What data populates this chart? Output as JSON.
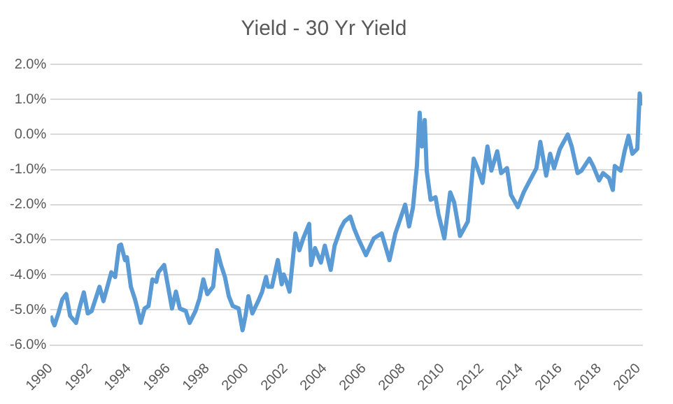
{
  "chart_data": {
    "type": "line",
    "title": "Yield - 30 Yr Yield",
    "x": [
      1990.0,
      1990.2,
      1990.4,
      1990.6,
      1990.8,
      1991.0,
      1991.3,
      1991.5,
      1991.7,
      1991.9,
      1992.1,
      1992.5,
      1992.7,
      1992.9,
      1993.1,
      1993.3,
      1993.5,
      1993.6,
      1993.8,
      1993.9,
      1994.1,
      1994.3,
      1994.4,
      1994.6,
      1994.8,
      1995.0,
      1995.2,
      1995.4,
      1995.5,
      1995.8,
      1996.0,
      1996.2,
      1996.4,
      1996.6,
      1996.9,
      1997.1,
      1997.4,
      1997.6,
      1997.8,
      1998.0,
      1998.3,
      1998.5,
      1998.7,
      1998.9,
      1999.1,
      1999.3,
      1999.6,
      1999.8,
      1999.95,
      2000.1,
      2000.3,
      2000.6,
      2000.8,
      2001.0,
      2001.1,
      2001.3,
      2001.6,
      2001.8,
      2001.9,
      2002.0,
      2002.2,
      2002.5,
      2002.7,
      2002.9,
      2003.2,
      2003.3,
      2003.5,
      2003.8,
      2004.0,
      2004.3,
      2004.5,
      2004.8,
      2005.0,
      2005.3,
      2005.5,
      2005.7,
      2006.1,
      2006.5,
      2006.9,
      2007.3,
      2007.6,
      2007.85,
      2008.1,
      2008.3,
      2008.5,
      2008.7,
      2008.84,
      2008.96,
      2009.1,
      2009.2,
      2009.4,
      2009.65,
      2009.8,
      2010.1,
      2010.4,
      2010.6,
      2010.9,
      2011.3,
      2011.6,
      2011.8,
      2012.05,
      2012.3,
      2012.5,
      2012.8,
      2013.0,
      2013.3,
      2013.5,
      2013.85,
      2014.15,
      2014.4,
      2014.8,
      2015.0,
      2015.3,
      2015.5,
      2015.7,
      2016.0,
      2016.4,
      2016.6,
      2016.9,
      2017.1,
      2017.5,
      2017.7,
      2018.0,
      2018.2,
      2018.5,
      2018.7,
      2018.8,
      2019.1,
      2019.3,
      2019.5,
      2019.7,
      2019.95,
      2020.07,
      2020.2
    ],
    "series": [
      {
        "color": "#5b9bd5",
        "values": [
          -5.17,
          -5.44,
          -5.1,
          -4.7,
          -4.55,
          -5.17,
          -5.37,
          -4.9,
          -4.5,
          -5.1,
          -5.03,
          -4.34,
          -4.75,
          -4.34,
          -3.93,
          -4.06,
          -3.17,
          -3.14,
          -3.58,
          -3.5,
          -4.34,
          -4.68,
          -4.89,
          -5.37,
          -4.96,
          -4.89,
          -4.13,
          -4.2,
          -3.93,
          -3.72,
          -4.34,
          -4.96,
          -4.48,
          -4.96,
          -5.03,
          -5.37,
          -5.03,
          -4.68,
          -4.13,
          -4.55,
          -4.34,
          -3.3,
          -3.72,
          -4.06,
          -4.61,
          -4.89,
          -4.96,
          -5.58,
          -5.17,
          -4.61,
          -5.1,
          -4.75,
          -4.48,
          -4.06,
          -4.34,
          -4.34,
          -3.58,
          -4.27,
          -3.99,
          -4.13,
          -4.48,
          -2.82,
          -3.3,
          -2.96,
          -2.55,
          -3.72,
          -3.24,
          -3.65,
          -3.17,
          -3.86,
          -3.17,
          -2.69,
          -2.48,
          -2.34,
          -2.69,
          -2.96,
          -3.44,
          -2.96,
          -2.82,
          -3.58,
          -2.82,
          -2.41,
          -2.0,
          -2.62,
          -2.07,
          -0.9,
          0.62,
          -0.34,
          0.41,
          -1.03,
          -1.86,
          -1.79,
          -2.27,
          -2.96,
          -1.65,
          -1.93,
          -2.89,
          -2.48,
          -0.69,
          -0.96,
          -1.38,
          -0.34,
          -1.03,
          -0.48,
          -1.1,
          -0.96,
          -1.72,
          -2.07,
          -1.65,
          -1.38,
          -0.96,
          -0.21,
          -1.17,
          -0.55,
          -0.96,
          -0.41,
          0.0,
          -0.34,
          -1.1,
          -1.03,
          -0.69,
          -0.9,
          -1.31,
          -1.1,
          -1.24,
          -1.58,
          -0.9,
          -1.03,
          -0.48,
          -0.04,
          -0.55,
          -0.41,
          1.17,
          0.83
        ]
      }
    ],
    "xlim": [
      1990,
      2020.2
    ],
    "xticks": [
      1990,
      1992,
      1994,
      1996,
      1998,
      2000,
      2002,
      2004,
      2006,
      2008,
      2010,
      2012,
      2014,
      2016,
      2018,
      2020
    ],
    "ylim": [
      -6,
      2
    ],
    "yticks": [
      {
        "value": -6,
        "label": "-6.0%"
      },
      {
        "value": -5,
        "label": "-5.0%"
      },
      {
        "value": -4,
        "label": "-4.0%"
      },
      {
        "value": -3,
        "label": "-3.0%"
      },
      {
        "value": -2,
        "label": "-2.0%"
      },
      {
        "value": -1,
        "label": "-1.0%"
      },
      {
        "value": 0,
        "label": "0.0%"
      },
      {
        "value": 1,
        "label": "1.0%"
      },
      {
        "value": 2,
        "label": "2.0%"
      }
    ],
    "grid": "y",
    "marker": "none",
    "line_style": "solid"
  }
}
